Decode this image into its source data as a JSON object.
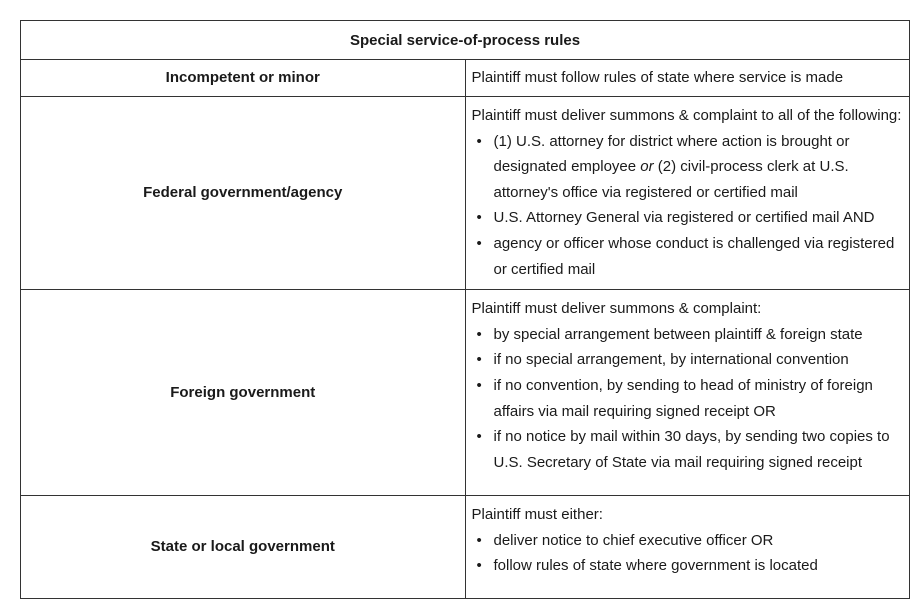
{
  "table": {
    "title": "Special service-of-process rules",
    "rows": [
      {
        "label": "Incompetent or minor",
        "text": "Plaintiff must follow rules of state where service is made"
      },
      {
        "label": "Federal government/agency",
        "intro": "Plaintiff must deliver summons & complaint to all of the following:",
        "bullets": [
          {
            "before": "(1) U.S. attorney for district where action is brought or designated employee ",
            "emphasis": "or",
            "after": " (2) civil-process clerk at U.S. attorney's office via registered or certified mail"
          },
          "U.S. Attorney General via registered or certified mail AND",
          "agency or officer whose conduct is challenged via registered or certified mail"
        ]
      },
      {
        "label": "Foreign government",
        "intro": "Plaintiff must deliver summons & complaint:",
        "bullets": [
          "by special arrangement between plaintiff & foreign state",
          "if no special arrangement, by international convention",
          "if no convention, by sending to head of ministry of foreign affairs via mail requiring signed receipt OR",
          "if no notice by mail within 30 days, by sending two copies to U.S. Secretary of State via mail requiring signed receipt"
        ]
      },
      {
        "label": "State or local government",
        "intro": "Plaintiff must either:",
        "bullets": [
          "deliver notice to chief executive officer OR",
          "follow rules of state where government is located"
        ]
      }
    ]
  },
  "bullet_glyph": "•"
}
